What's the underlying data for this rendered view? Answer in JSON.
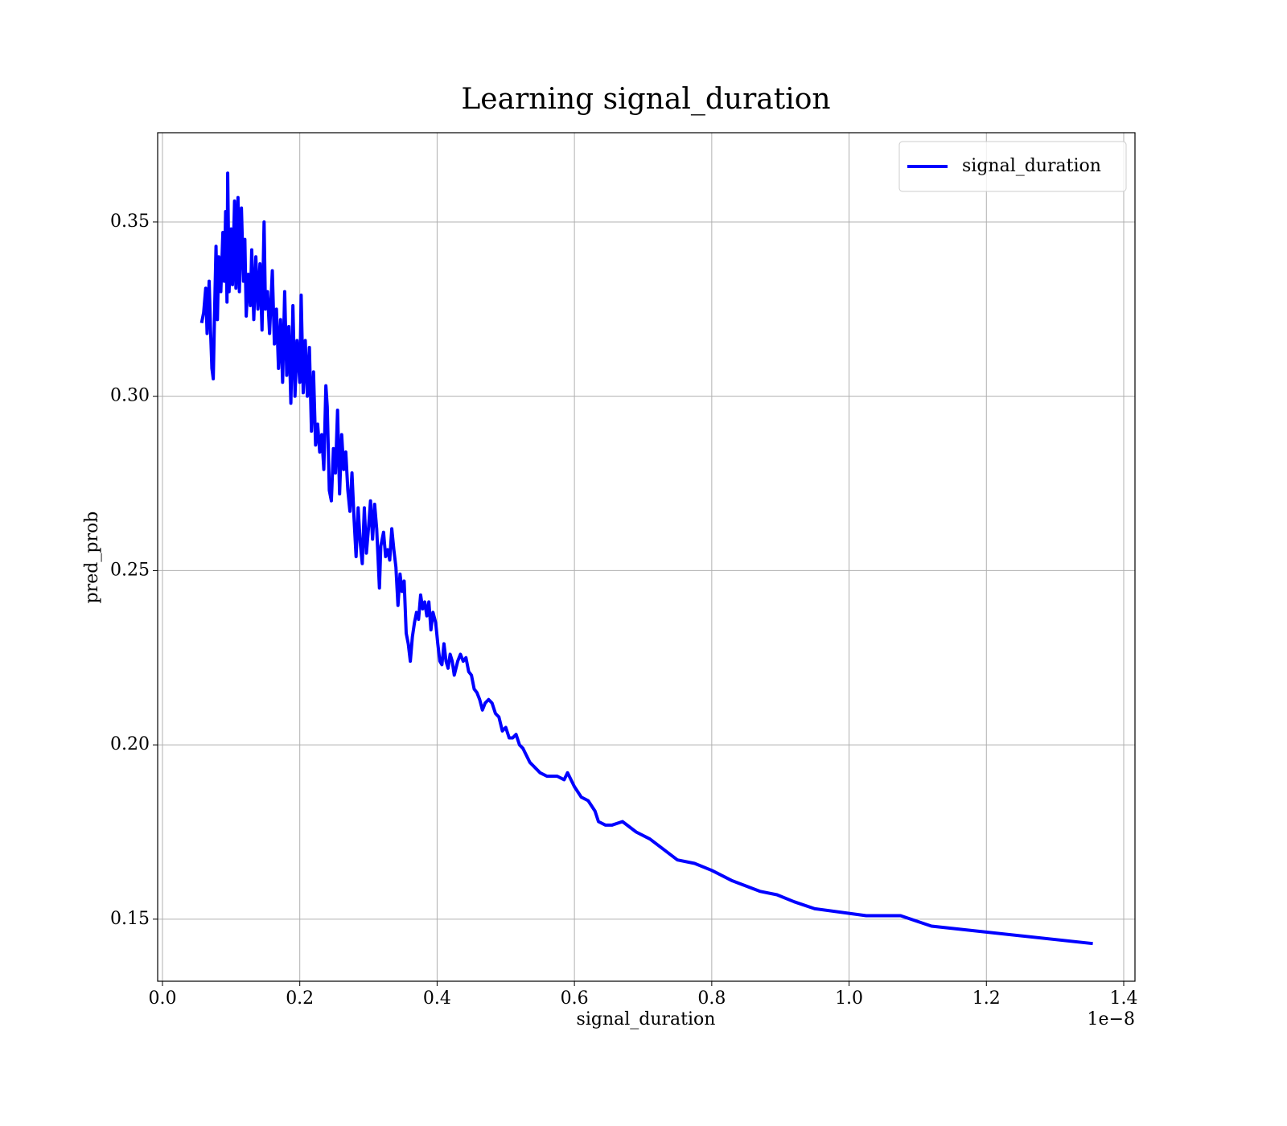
{
  "chart_data": {
    "type": "line",
    "title": "Learning signal_duration",
    "x_label": "signal_duration",
    "y_label": "pred_prob",
    "x_offset_label": "1e−8",
    "xlim": [
      -0.007,
      1.4164
    ],
    "ylim": [
      0.1322,
      0.3756
    ],
    "xticks": [
      {
        "value": 0,
        "label": "0.0"
      },
      0.2,
      0.4,
      0.6,
      0.8,
      {
        "value": 1,
        "label": "1.0"
      },
      1.2,
      1.4
    ],
    "yticks": [
      0.15,
      {
        "value": 0.2,
        "label": "0.20"
      },
      0.25,
      {
        "value": 0.3,
        "label": "0.30"
      },
      0.35
    ],
    "grid": true,
    "legend": "upper right",
    "x": [
      0.057,
      0.06,
      0.063,
      0.065,
      0.068,
      0.07,
      0.072,
      0.074,
      0.076,
      0.078,
      0.08,
      0.082,
      0.085,
      0.088,
      0.09,
      0.092,
      0.094,
      0.095,
      0.097,
      0.1,
      0.102,
      0.105,
      0.107,
      0.11,
      0.112,
      0.115,
      0.118,
      0.12,
      0.122,
      0.125,
      0.128,
      0.13,
      0.133,
      0.136,
      0.139,
      0.142,
      0.145,
      0.148,
      0.15,
      0.153,
      0.156,
      0.16,
      0.163,
      0.166,
      0.169,
      0.172,
      0.175,
      0.178,
      0.181,
      0.184,
      0.187,
      0.19,
      0.193,
      0.196,
      0.2,
      0.202,
      0.205,
      0.208,
      0.211,
      0.214,
      0.217,
      0.22,
      0.223,
      0.226,
      0.229,
      0.232,
      0.235,
      0.238,
      0.24,
      0.243,
      0.246,
      0.249,
      0.252,
      0.255,
      0.258,
      0.261,
      0.264,
      0.267,
      0.27,
      0.273,
      0.276,
      0.279,
      0.282,
      0.285,
      0.288,
      0.291,
      0.294,
      0.297,
      0.3,
      0.303,
      0.306,
      0.309,
      0.312,
      0.316,
      0.318,
      0.322,
      0.325,
      0.328,
      0.331,
      0.334,
      0.337,
      0.34,
      0.343,
      0.346,
      0.349,
      0.352,
      0.355,
      0.358,
      0.361,
      0.364,
      0.367,
      0.37,
      0.373,
      0.376,
      0.379,
      0.382,
      0.385,
      0.388,
      0.391,
      0.394,
      0.398,
      0.401,
      0.404,
      0.407,
      0.41,
      0.413,
      0.416,
      0.419,
      0.422,
      0.425,
      0.43,
      0.434,
      0.438,
      0.442,
      0.446,
      0.45,
      0.454,
      0.458,
      0.462,
      0.466,
      0.47,
      0.475,
      0.48,
      0.485,
      0.49,
      0.495,
      0.5,
      0.505,
      0.51,
      0.515,
      0.52,
      0.525,
      0.53,
      0.535,
      0.54,
      0.55,
      0.56,
      0.565,
      0.575,
      0.585,
      0.59,
      0.6,
      0.61,
      0.62,
      0.63,
      0.635,
      0.645,
      0.655,
      0.67,
      0.69,
      0.71,
      0.73,
      0.75,
      0.775,
      0.8,
      0.83,
      0.87,
      0.895,
      0.92,
      0.95,
      1.025,
      1.075,
      1.12,
      1.355
    ],
    "series": [
      {
        "name": "signal_duration",
        "color": "#0000ff",
        "values": [
          0.321,
          0.324,
          0.331,
          0.318,
          0.333,
          0.319,
          0.308,
          0.305,
          0.325,
          0.343,
          0.322,
          0.34,
          0.33,
          0.347,
          0.333,
          0.353,
          0.327,
          0.364,
          0.33,
          0.348,
          0.332,
          0.356,
          0.331,
          0.357,
          0.33,
          0.354,
          0.333,
          0.345,
          0.323,
          0.335,
          0.326,
          0.342,
          0.322,
          0.34,
          0.325,
          0.338,
          0.319,
          0.35,
          0.325,
          0.33,
          0.318,
          0.336,
          0.315,
          0.325,
          0.308,
          0.322,
          0.304,
          0.33,
          0.306,
          0.32,
          0.298,
          0.326,
          0.3,
          0.316,
          0.304,
          0.329,
          0.301,
          0.316,
          0.3,
          0.314,
          0.29,
          0.307,
          0.286,
          0.292,
          0.284,
          0.289,
          0.279,
          0.303,
          0.297,
          0.273,
          0.27,
          0.285,
          0.278,
          0.296,
          0.272,
          0.289,
          0.279,
          0.284,
          0.273,
          0.267,
          0.278,
          0.265,
          0.254,
          0.268,
          0.258,
          0.252,
          0.268,
          0.255,
          0.262,
          0.27,
          0.259,
          0.269,
          0.262,
          0.245,
          0.257,
          0.261,
          0.254,
          0.256,
          0.253,
          0.262,
          0.256,
          0.251,
          0.24,
          0.249,
          0.244,
          0.247,
          0.232,
          0.229,
          0.224,
          0.231,
          0.235,
          0.238,
          0.236,
          0.243,
          0.239,
          0.241,
          0.237,
          0.241,
          0.233,
          0.238,
          0.235,
          0.229,
          0.224,
          0.223,
          0.229,
          0.224,
          0.222,
          0.226,
          0.224,
          0.22,
          0.224,
          0.226,
          0.224,
          0.225,
          0.221,
          0.22,
          0.216,
          0.215,
          0.213,
          0.21,
          0.212,
          0.213,
          0.212,
          0.209,
          0.208,
          0.204,
          0.205,
          0.202,
          0.202,
          0.203,
          0.2,
          0.199,
          0.197,
          0.195,
          0.194,
          0.192,
          0.191,
          0.191,
          0.191,
          0.19,
          0.192,
          0.188,
          0.185,
          0.184,
          0.181,
          0.178,
          0.177,
          0.177,
          0.178,
          0.175,
          0.173,
          0.17,
          0.167,
          0.166,
          0.164,
          0.161,
          0.158,
          0.157,
          0.155,
          0.153,
          0.151,
          0.151,
          0.148,
          0.143
        ]
      }
    ]
  }
}
